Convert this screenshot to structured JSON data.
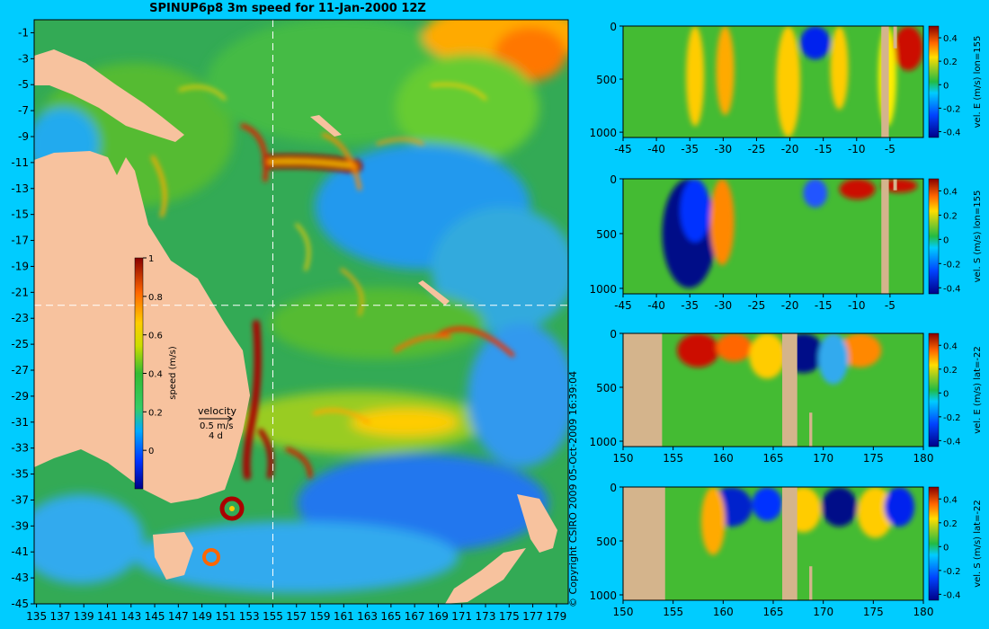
{
  "header": {
    "title": "SPINUP6p8 3m speed for 11-Jan-2000 12Z",
    "copyright": "© Copyright CSIRO 2009   05-Oct-2009 16:39:04"
  },
  "colors": {
    "background": "#00ccff",
    "land": "#f7c29e",
    "section_land": "#d4b48c",
    "crosshair": "#ffffff"
  },
  "chart_data": [
    {
      "type": "heatmap",
      "panel": "map",
      "title": "SPINUP6p8 3m speed for 11-Jan-2000 12Z",
      "x_ticks": [
        "135",
        "137",
        "139",
        "141",
        "143",
        "145",
        "147",
        "149",
        "151",
        "153",
        "155",
        "157",
        "159",
        "161",
        "163",
        "165",
        "167",
        "169",
        "171",
        "173",
        "175",
        "177",
        "179"
      ],
      "x_tick_values": [
        135,
        137,
        139,
        141,
        143,
        145,
        147,
        149,
        151,
        153,
        155,
        157,
        159,
        161,
        163,
        165,
        167,
        169,
        171,
        173,
        175,
        177,
        179
      ],
      "y_ticks": [
        "-1",
        "-3",
        "-5",
        "-7",
        "-9",
        "-11",
        "-13",
        "-15",
        "-17",
        "-19",
        "-21",
        "-23",
        "-25",
        "-27",
        "-29",
        "-31",
        "-33",
        "-35",
        "-37",
        "-39",
        "-41",
        "-43",
        "-45"
      ],
      "y_tick_values": [
        -1,
        -3,
        -5,
        -7,
        -9,
        -11,
        -13,
        -15,
        -17,
        -19,
        -21,
        -23,
        -25,
        -27,
        -29,
        -31,
        -33,
        -35,
        -37,
        -39,
        -41,
        -43,
        -45
      ],
      "xlim": [
        134.8,
        180.0
      ],
      "ylim": [
        -45.0,
        0.0
      ],
      "crosshair": {
        "lon": 155,
        "lat": -22
      },
      "colorbar": {
        "label": "speed (m/s)",
        "ticks": [
          "0",
          "0.2",
          "0.4",
          "0.6",
          "0.8",
          "1"
        ],
        "tick_values": [
          0,
          0.2,
          0.4,
          0.6,
          0.8,
          1
        ],
        "range": [
          -0.2,
          1.0
        ]
      },
      "velocity_key": {
        "label": "velocity",
        "speed": "0.5 m/s",
        "time": "4 d"
      }
    },
    {
      "type": "heatmap",
      "panel": "section-1",
      "xlim": [
        -45,
        0
      ],
      "ylim": [
        1050,
        0
      ],
      "x_ticks": [
        "-45",
        "-40",
        "-35",
        "-30",
        "-25",
        "-20",
        "-15",
        "-10",
        "-5"
      ],
      "x_tick_values": [
        -45,
        -40,
        -35,
        -30,
        -25,
        -20,
        -15,
        -10,
        -5
      ],
      "y_ticks": [
        "0",
        "500",
        "1000"
      ],
      "y_tick_values": [
        0,
        500,
        1000
      ],
      "colorbar": {
        "label": "vel. E (m/s) lon=155",
        "ticks": [
          "0.4",
          "0.2",
          "0",
          "-0.2",
          "-0.4"
        ],
        "tick_values": [
          0.4,
          0.2,
          0,
          -0.2,
          -0.4
        ],
        "range": [
          -0.45,
          0.5
        ]
      }
    },
    {
      "type": "heatmap",
      "panel": "section-2",
      "xlim": [
        -45,
        0
      ],
      "ylim": [
        1050,
        0
      ],
      "x_ticks": [
        "-45",
        "-40",
        "-35",
        "-30",
        "-25",
        "-20",
        "-15",
        "-10",
        "-5"
      ],
      "x_tick_values": [
        -45,
        -40,
        -35,
        -30,
        -25,
        -20,
        -15,
        -10,
        -5
      ],
      "y_ticks": [
        "0",
        "500",
        "1000"
      ],
      "y_tick_values": [
        0,
        500,
        1000
      ],
      "colorbar": {
        "label": "vel. S (m/s) lon=155",
        "ticks": [
          "0.4",
          "0.2",
          "0",
          "-0.2",
          "-0.4"
        ],
        "tick_values": [
          0.4,
          0.2,
          0,
          -0.2,
          -0.4
        ],
        "range": [
          -0.45,
          0.5
        ]
      }
    },
    {
      "type": "heatmap",
      "panel": "section-3",
      "xlim": [
        150,
        180
      ],
      "ylim": [
        1050,
        0
      ],
      "x_ticks": [
        "150",
        "155",
        "160",
        "165",
        "170",
        "175",
        "180"
      ],
      "x_tick_values": [
        150,
        155,
        160,
        165,
        170,
        175,
        180
      ],
      "y_ticks": [
        "0",
        "500",
        "1000"
      ],
      "y_tick_values": [
        0,
        500,
        1000
      ],
      "colorbar": {
        "label": "vel. E (m/s) lat=-22",
        "ticks": [
          "0.4",
          "0.2",
          "0",
          "-0.2",
          "-0.4"
        ],
        "tick_values": [
          0.4,
          0.2,
          0,
          -0.2,
          -0.4
        ],
        "range": [
          -0.45,
          0.5
        ]
      }
    },
    {
      "type": "heatmap",
      "panel": "section-4",
      "xlim": [
        150,
        180
      ],
      "ylim": [
        1050,
        0
      ],
      "x_ticks": [
        "150",
        "155",
        "160",
        "165",
        "170",
        "175",
        "180"
      ],
      "x_tick_values": [
        150,
        155,
        160,
        165,
        170,
        175,
        180
      ],
      "y_ticks": [
        "0",
        "500",
        "1000"
      ],
      "y_tick_values": [
        0,
        500,
        1000
      ],
      "colorbar": {
        "label": "vel. S (m/s) lat=-22",
        "ticks": [
          "0.4",
          "0.2",
          "0",
          "-0.2",
          "-0.4"
        ],
        "tick_values": [
          0.4,
          0.2,
          0,
          -0.2,
          -0.4
        ],
        "range": [
          -0.45,
          0.5
        ]
      }
    }
  ]
}
